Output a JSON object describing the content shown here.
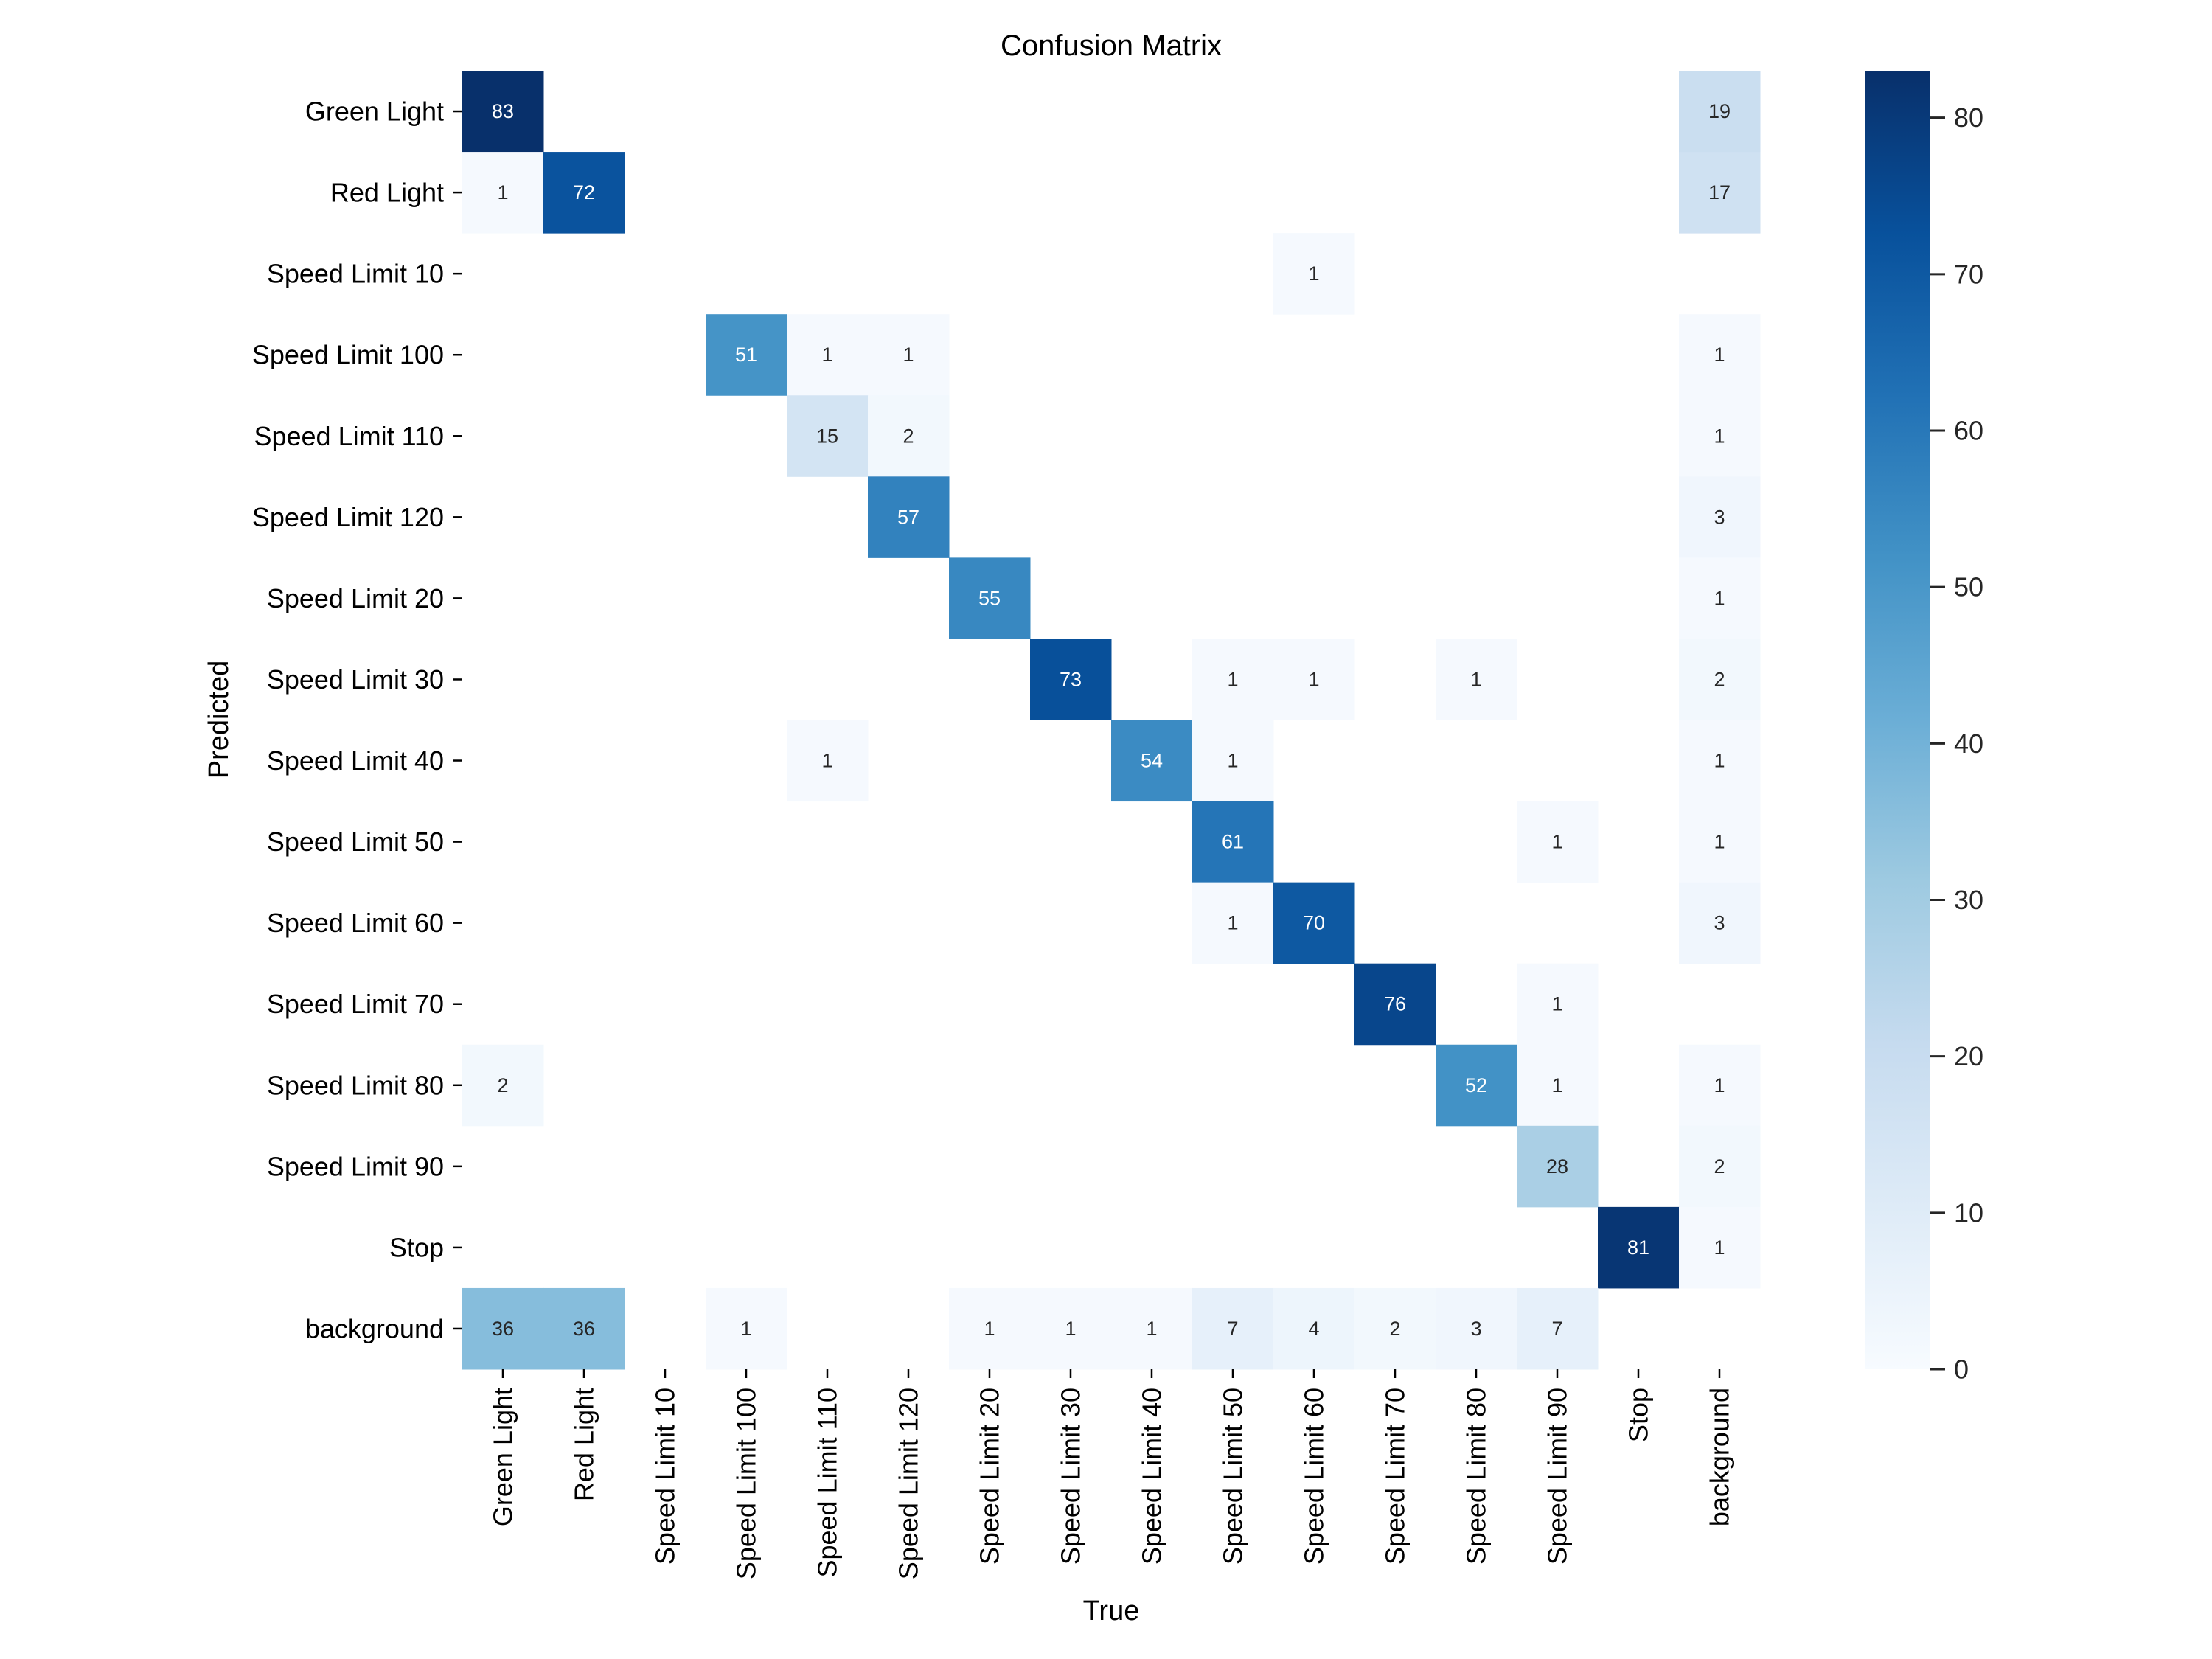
{
  "chart_data": {
    "type": "heatmap",
    "title": "Confusion Matrix",
    "xlabel": "True",
    "ylabel": "Predicted",
    "colormap": "Blues",
    "colors": {
      "low": "#f7fbff",
      "high": "#08306b",
      "annotation_dark": "#262626",
      "annotation_light": "#ffffff"
    },
    "zero_cells_hidden": true,
    "x_categories": [
      "Green Light",
      "Red Light",
      "Speed Limit 10",
      "Speed Limit 100",
      "Speed Limit 110",
      "Speed Limit 120",
      "Speed Limit 20",
      "Speed Limit 30",
      "Speed Limit 40",
      "Speed Limit 50",
      "Speed Limit 60",
      "Speed Limit 70",
      "Speed Limit 80",
      "Speed Limit 90",
      "Stop",
      "background"
    ],
    "y_categories": [
      "Green Light",
      "Red Light",
      "Speed Limit 10",
      "Speed Limit 100",
      "Speed Limit 110",
      "Speed Limit 120",
      "Speed Limit 20",
      "Speed Limit 30",
      "Speed Limit 40",
      "Speed Limit 50",
      "Speed Limit 60",
      "Speed Limit 70",
      "Speed Limit 80",
      "Speed Limit 90",
      "Stop",
      "background"
    ],
    "values": [
      [
        83,
        0,
        0,
        0,
        0,
        0,
        0,
        0,
        0,
        0,
        0,
        0,
        0,
        0,
        0,
        19
      ],
      [
        1,
        72,
        0,
        0,
        0,
        0,
        0,
        0,
        0,
        0,
        0,
        0,
        0,
        0,
        0,
        17
      ],
      [
        0,
        0,
        0,
        0,
        0,
        0,
        0,
        0,
        0,
        0,
        1,
        0,
        0,
        0,
        0,
        0
      ],
      [
        0,
        0,
        0,
        51,
        1,
        1,
        0,
        0,
        0,
        0,
        0,
        0,
        0,
        0,
        0,
        1
      ],
      [
        0,
        0,
        0,
        0,
        15,
        2,
        0,
        0,
        0,
        0,
        0,
        0,
        0,
        0,
        0,
        1
      ],
      [
        0,
        0,
        0,
        0,
        0,
        57,
        0,
        0,
        0,
        0,
        0,
        0,
        0,
        0,
        0,
        3
      ],
      [
        0,
        0,
        0,
        0,
        0,
        0,
        55,
        0,
        0,
        0,
        0,
        0,
        0,
        0,
        0,
        1
      ],
      [
        0,
        0,
        0,
        0,
        0,
        0,
        0,
        73,
        0,
        1,
        1,
        0,
        1,
        0,
        0,
        2
      ],
      [
        0,
        0,
        0,
        0,
        1,
        0,
        0,
        0,
        54,
        1,
        0,
        0,
        0,
        0,
        0,
        1
      ],
      [
        0,
        0,
        0,
        0,
        0,
        0,
        0,
        0,
        0,
        61,
        0,
        0,
        0,
        1,
        0,
        1
      ],
      [
        0,
        0,
        0,
        0,
        0,
        0,
        0,
        0,
        0,
        1,
        70,
        0,
        0,
        0,
        0,
        3
      ],
      [
        0,
        0,
        0,
        0,
        0,
        0,
        0,
        0,
        0,
        0,
        0,
        76,
        0,
        1,
        0,
        0
      ],
      [
        2,
        0,
        0,
        0,
        0,
        0,
        0,
        0,
        0,
        0,
        0,
        0,
        52,
        1,
        0,
        1
      ],
      [
        0,
        0,
        0,
        0,
        0,
        0,
        0,
        0,
        0,
        0,
        0,
        0,
        0,
        28,
        0,
        2
      ],
      [
        0,
        0,
        0,
        0,
        0,
        0,
        0,
        0,
        0,
        0,
        0,
        0,
        0,
        0,
        81,
        1
      ],
      [
        36,
        36,
        0,
        1,
        0,
        0,
        1,
        1,
        1,
        7,
        4,
        2,
        3,
        7,
        0,
        0
      ]
    ],
    "colorbar": {
      "range": [
        0,
        83
      ],
      "ticks": [
        0,
        10,
        20,
        30,
        40,
        50,
        60,
        70,
        80
      ],
      "tick_labels": [
        "0",
        "10",
        "20",
        "30",
        "40",
        "50",
        "60",
        "70",
        "80"
      ]
    },
    "grid": false,
    "legend": "colorbar-right"
  }
}
